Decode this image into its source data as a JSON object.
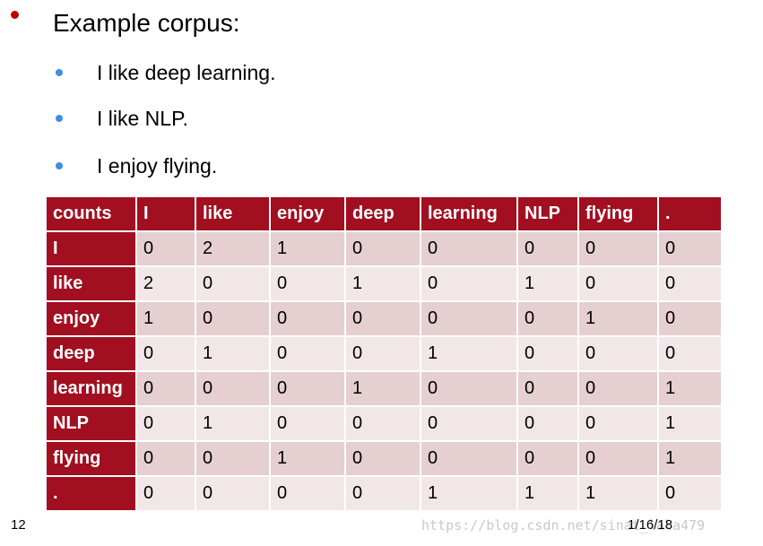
{
  "heading": "Example corpus:",
  "sentences": [
    "I like deep learning.",
    "I like NLP.",
    "I enjoy flying."
  ],
  "table": {
    "columns": [
      "counts",
      "I",
      "like",
      "enjoy",
      "deep",
      "learning",
      "NLP",
      "flying",
      "."
    ],
    "rows": [
      {
        "label": "I",
        "values": [
          "0",
          "2",
          "1",
          "0",
          "0",
          "0",
          "0",
          "0"
        ]
      },
      {
        "label": "like",
        "values": [
          "2",
          "0",
          "0",
          "1",
          "0",
          "1",
          "0",
          "0"
        ]
      },
      {
        "label": "enjoy",
        "values": [
          "1",
          "0",
          "0",
          "0",
          "0",
          "0",
          "1",
          "0"
        ]
      },
      {
        "label": "deep",
        "values": [
          "0",
          "1",
          "0",
          "0",
          "1",
          "0",
          "0",
          "0"
        ]
      },
      {
        "label": "learning",
        "values": [
          "0",
          "0",
          "0",
          "1",
          "0",
          "0",
          "0",
          "1"
        ]
      },
      {
        "label": "NLP",
        "values": [
          "0",
          "1",
          "0",
          "0",
          "0",
          "0",
          "0",
          "1"
        ]
      },
      {
        "label": "flying",
        "values": [
          "0",
          "0",
          "1",
          "0",
          "0",
          "0",
          "0",
          "1"
        ]
      },
      {
        "label": ".",
        "values": [
          "0",
          "0",
          "0",
          "0",
          "1",
          "1",
          "1",
          "0"
        ]
      }
    ]
  },
  "footer": {
    "page_number": "12",
    "date": "1/16/18",
    "watermark": "https://blog.csdn.net/sinat_lala479"
  },
  "colors": {
    "header_red": "#a10f20",
    "bullet_red": "#c00000",
    "bullet_blue": "#3f8ee0",
    "row_dark": "#e6cfd0",
    "row_light": "#f2e7e7"
  }
}
